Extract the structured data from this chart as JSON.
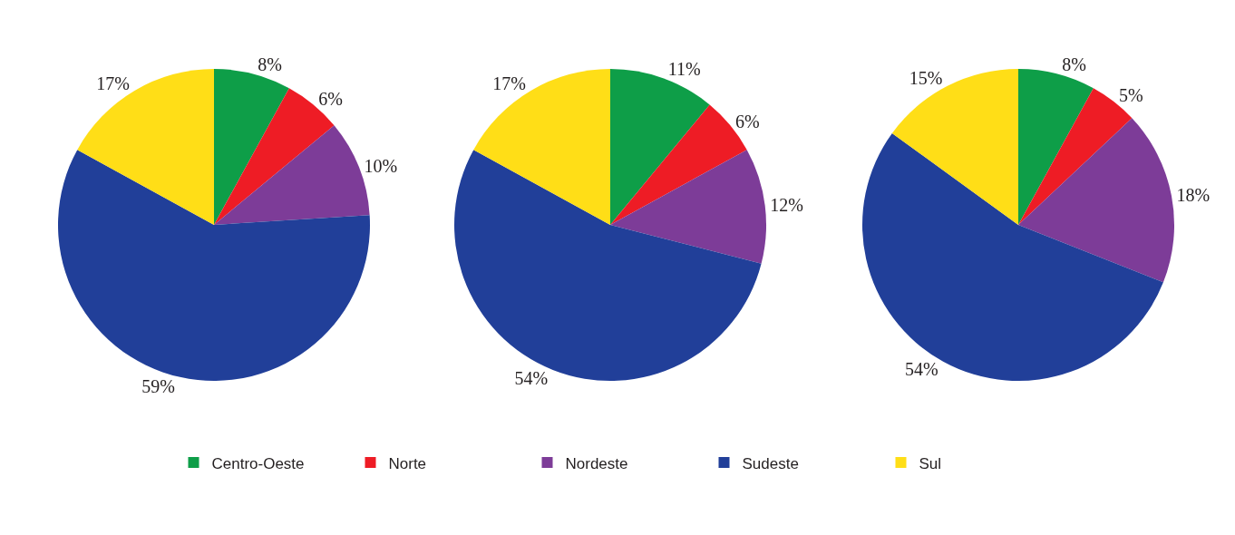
{
  "chart_data": [
    {
      "type": "pie",
      "categories": [
        "Centro-Oeste",
        "Norte",
        "Nordeste",
        "Sudeste",
        "Sul"
      ],
      "values": [
        8,
        6,
        10,
        59,
        17
      ],
      "value_labels": [
        "8%",
        "6%",
        "10%",
        "59%",
        "17%"
      ],
      "colors": [
        "#0e9e48",
        "#ee1c25",
        "#7d3c98",
        "#213f99",
        "#ffde17"
      ],
      "legend": "bottom"
    },
    {
      "type": "pie",
      "categories": [
        null,
        null,
        null,
        null,
        null
      ],
      "values": [
        11,
        6,
        12,
        54,
        17
      ],
      "value_labels": [
        "11%",
        "6%",
        "12%",
        "54%",
        "17%"
      ],
      "colors": [
        "#0e9e48",
        "#ee1c25",
        "#7d3c98",
        "#213f99",
        "#ffde17"
      ]
    },
    {
      "type": "pie",
      "categories": [
        null,
        null,
        null,
        null,
        null
      ],
      "values": [
        8,
        5,
        18,
        54,
        15
      ],
      "value_labels": [
        "8%",
        "5%",
        "18%",
        "54%",
        "15%"
      ],
      "colors": [
        "#0e9e48",
        "#ee1c25",
        "#7d3c98",
        "#213f99",
        "#ffde17"
      ]
    }
  ]
}
